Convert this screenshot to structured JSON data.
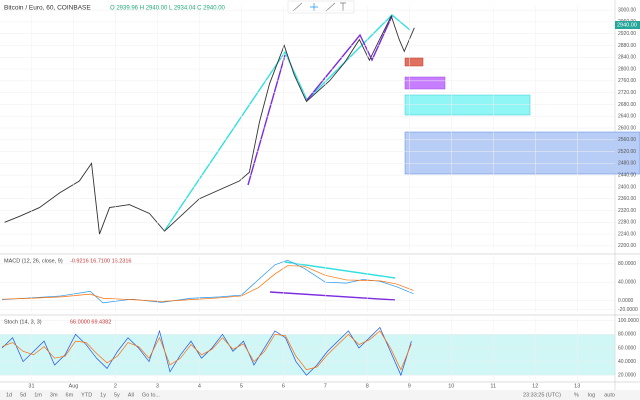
{
  "header": {
    "symbol": "Bitcoin / Euro, 60, COINBASE",
    "ohlc": "O 2939.96 H 2940.00 L 2934.04 C 2940.00",
    "last_price": "2940.00"
  },
  "chart_data": [
    {
      "type": "line",
      "xlim": [
        -0.75,
        13.9
      ],
      "ylim": [
        2186,
        3014
      ],
      "yticks": [
        {
          "value": 3000,
          "label": "3000.00"
        },
        {
          "value": 2960,
          "label": "2960.00"
        },
        {
          "value": 2920,
          "label": "2920.00"
        },
        {
          "value": 2880,
          "label": "2880.00"
        },
        {
          "value": 2840,
          "label": "2840.00"
        },
        {
          "value": 2800,
          "label": "2800.00"
        },
        {
          "value": 2760,
          "label": "2760.00"
        },
        {
          "value": 2720,
          "label": "2720.00"
        },
        {
          "value": 2680,
          "label": "2680.00"
        },
        {
          "value": 2640,
          "label": "2640.00"
        },
        {
          "value": 2600,
          "label": "2600.00"
        },
        {
          "value": 2560,
          "label": "2560.00"
        },
        {
          "value": 2520,
          "label": "2520.00"
        },
        {
          "value": 2480,
          "label": "2480.00"
        },
        {
          "value": 2440,
          "label": "2440.00"
        },
        {
          "value": 2400,
          "label": "2400.00"
        },
        {
          "value": 2360,
          "label": "2360.00"
        },
        {
          "value": 2320,
          "label": "2320.00"
        },
        {
          "value": 2280,
          "label": "2280.00"
        },
        {
          "value": 2240,
          "label": "2240.00"
        },
        {
          "value": 2200,
          "label": "2200.00"
        }
      ],
      "x": [
        -0.64,
        -0.29,
        0.19,
        0.67,
        1.14,
        1.43,
        1.62,
        1.86,
        2.33,
        2.81,
        3.17,
        4.0,
        4.95,
        5.19,
        5.43,
        5.67,
        6.02,
        6.26,
        6.55,
        7.1,
        7.45,
        7.81,
        8.05,
        8.29,
        8.57,
        8.76,
        8.88,
        9.12
      ],
      "series": [
        {
          "color": "#333333",
          "values": [
            2280,
            2300,
            2330,
            2380,
            2420,
            2480,
            2240,
            2330,
            2340,
            2310,
            2250,
            2360,
            2420,
            2450,
            2620,
            2750,
            2880,
            2780,
            2690,
            2760,
            2820,
            2900,
            2830,
            2900,
            2980,
            2900,
            2860,
            2940
          ]
        }
      ]
    },
    {
      "type": "line",
      "title": "MACD (12, 26, close, 9)",
      "readout": "-0.9216  16.7100  16.2316",
      "xlim": [
        -0.75,
        13.9
      ],
      "ylim": [
        -25,
        95
      ],
      "yticks": [
        {
          "value": 80,
          "label": "80.0000"
        },
        {
          "value": 40,
          "label": "40.0000"
        },
        {
          "value": 0,
          "label": "0.0000"
        },
        {
          "value": -20,
          "label": "-20.0000"
        }
      ],
      "x": [
        -0.7,
        0,
        0.7,
        1.4,
        1.7,
        2.4,
        3.1,
        3.8,
        4.5,
        5.0,
        5.4,
        5.8,
        6.1,
        6.5,
        7.0,
        7.5,
        7.9,
        8.3,
        8.7,
        9.1
      ],
      "series": [
        {
          "color": "#2196f3",
          "values": [
            2,
            6,
            10,
            20,
            -5,
            3,
            -4,
            5,
            8,
            12,
            45,
            78,
            88,
            70,
            40,
            38,
            46,
            42,
            30,
            15
          ]
        },
        {
          "color": "#ff6d00",
          "values": [
            3,
            5,
            8,
            14,
            5,
            2,
            -2,
            2,
            6,
            10,
            28,
            58,
            76,
            75,
            55,
            45,
            44,
            43,
            36,
            22
          ]
        }
      ]
    },
    {
      "type": "line",
      "title": "Stoch (14, 3, 3)",
      "readout": "66.0000  69.4382",
      "xlim": [
        -0.75,
        13.9
      ],
      "ylim": [
        10,
        104
      ],
      "band": [
        20,
        80
      ],
      "yticks": [
        {
          "value": 100,
          "label": "100.0000"
        },
        {
          "value": 80,
          "label": "80.0000"
        },
        {
          "value": 60,
          "label": "60.0000"
        },
        {
          "value": 40,
          "label": "40.0000"
        },
        {
          "value": 20,
          "label": "20.0000"
        }
      ],
      "xticks": [
        {
          "value": 0,
          "label": "31"
        },
        {
          "value": 1,
          "label": "Aug"
        },
        2,
        3,
        4,
        5,
        6,
        7,
        8,
        9,
        10,
        11,
        12,
        13
      ],
      "x": [
        -0.7,
        -0.45,
        -0.2,
        0.05,
        0.3,
        0.55,
        0.8,
        1.05,
        1.3,
        1.55,
        1.8,
        2.05,
        2.3,
        2.55,
        2.8,
        3.05,
        3.3,
        3.55,
        3.8,
        4.05,
        4.3,
        4.55,
        4.8,
        5.05,
        5.3,
        5.55,
        5.8,
        6.05,
        6.3,
        6.55,
        6.8,
        7.05,
        7.3,
        7.55,
        7.8,
        8.05,
        8.3,
        8.55,
        8.8,
        9.05
      ],
      "series": [
        {
          "color": "#1e53e5",
          "values": [
            60,
            75,
            40,
            55,
            70,
            35,
            50,
            80,
            65,
            45,
            30,
            55,
            75,
            60,
            40,
            85,
            25,
            50,
            70,
            45,
            60,
            80,
            55,
            70,
            35,
            60,
            85,
            75,
            40,
            20,
            35,
            55,
            70,
            85,
            60,
            75,
            90,
            55,
            20,
            70
          ]
        },
        {
          "color": "#ff6d00",
          "values": [
            62,
            68,
            55,
            50,
            62,
            45,
            48,
            70,
            68,
            52,
            38,
            48,
            68,
            62,
            45,
            75,
            35,
            45,
            65,
            50,
            58,
            75,
            58,
            66,
            40,
            55,
            80,
            78,
            48,
            28,
            32,
            50,
            65,
            80,
            65,
            72,
            85,
            60,
            28,
            66
          ]
        }
      ]
    }
  ],
  "timebar": {
    "ranges": [
      "1d",
      "5d",
      "1m",
      "3m",
      "6m",
      "YTD",
      "1y",
      "5y",
      "All",
      "Go to..."
    ],
    "clock": "23:33:25 (UTC)",
    "options": [
      "%",
      "log",
      "auto"
    ]
  }
}
